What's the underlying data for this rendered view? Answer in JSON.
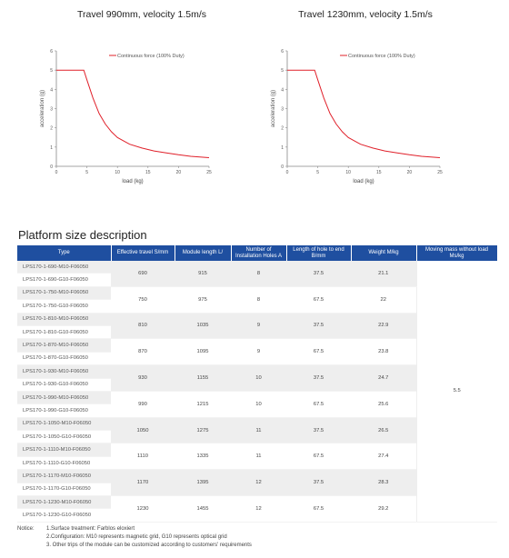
{
  "charts": [
    {
      "title": "Travel 990mm, velocity 1.5m/s",
      "ylabel": "acceleration (g)",
      "xlabel": "load  (kg)",
      "legend": "Continuous force (100% Duty)",
      "xticks": [
        "0",
        "5",
        "10",
        "15",
        "20",
        "25"
      ],
      "yticks": [
        "0",
        "1",
        "2",
        "3",
        "4",
        "5",
        "6"
      ]
    },
    {
      "title": "Travel 1230mm, velocity 1.5m/s",
      "ylabel": "acceleration (g)",
      "xlabel": "load  (kg)",
      "legend": "Continuous force (100% Duty)",
      "xticks": [
        "0",
        "5",
        "10",
        "15",
        "20",
        "25"
      ],
      "yticks": [
        "0",
        "1",
        "2",
        "3",
        "4",
        "5",
        "6"
      ]
    }
  ],
  "chart_data": [
    {
      "type": "line",
      "title": "Travel 990mm, velocity 1.5m/s",
      "xlabel": "load  (kg)",
      "ylabel": "acceleration (g)",
      "xlim": [
        0,
        25
      ],
      "ylim": [
        0,
        6
      ],
      "series": [
        {
          "name": "Continuous force (100% Duty)",
          "color": "#e0202a",
          "x": [
            0,
            4.5,
            5,
            6,
            7,
            8,
            9,
            10,
            12,
            14,
            16,
            18,
            20,
            22,
            25
          ],
          "y": [
            5,
            5,
            4.5,
            3.55,
            2.75,
            2.2,
            1.8,
            1.5,
            1.15,
            0.95,
            0.8,
            0.7,
            0.6,
            0.52,
            0.45
          ]
        }
      ]
    },
    {
      "type": "line",
      "title": "Travel 1230mm, velocity 1.5m/s",
      "xlabel": "load  (kg)",
      "ylabel": "acceleration (g)",
      "xlim": [
        0,
        25
      ],
      "ylim": [
        0,
        6
      ],
      "series": [
        {
          "name": "Continuous force (100% Duty)",
          "color": "#e0202a",
          "x": [
            0,
            4.5,
            5,
            6,
            7,
            8,
            9,
            10,
            12,
            14,
            16,
            18,
            20,
            22,
            25
          ],
          "y": [
            5,
            5,
            4.5,
            3.55,
            2.75,
            2.2,
            1.8,
            1.5,
            1.15,
            0.95,
            0.8,
            0.7,
            0.6,
            0.52,
            0.45
          ]
        }
      ]
    }
  ],
  "section_title": "Platform size description",
  "table": {
    "headers": [
      "Type",
      "Effective travel S/mm",
      "Module length L/",
      "Number of Installation Holes A",
      "Length of hole to end B/mm",
      "Weight M/kg",
      "Moving mass without load Ms/kg"
    ],
    "groups": [
      {
        "types": [
          "LPS170-1-690-M10-F06050",
          "LPS170-1-690-G10-F06050"
        ],
        "travel": "690",
        "length": "915",
        "holes": "8",
        "b": "37.5",
        "weight": "21.1"
      },
      {
        "types": [
          "LPS170-1-750-M10-F06050",
          "LPS170-1-750-G10-F06050"
        ],
        "travel": "750",
        "length": "975",
        "holes": "8",
        "b": "67.5",
        "weight": "22"
      },
      {
        "types": [
          "LPS170-1-810-M10-F06050",
          "LPS170-1-810-G10-F06050"
        ],
        "travel": "810",
        "length": "1035",
        "holes": "9",
        "b": "37.5",
        "weight": "22.9"
      },
      {
        "types": [
          "LPS170-1-870-M10-F06050",
          "LPS170-1-870-G10-F06050"
        ],
        "travel": "870",
        "length": "1095",
        "holes": "9",
        "b": "67.5",
        "weight": "23.8"
      },
      {
        "types": [
          "LPS170-1-930-M10-F06050",
          "LPS170-1-930-G10-F06050"
        ],
        "travel": "930",
        "length": "1155",
        "holes": "10",
        "b": "37.5",
        "weight": "24.7"
      },
      {
        "types": [
          "LPS170-1-990-M10-F06050",
          "LPS170-1-990-G10-F06050"
        ],
        "travel": "990",
        "length": "1215",
        "holes": "10",
        "b": "67.5",
        "weight": "25.6"
      },
      {
        "types": [
          "LPS170-1-1050-M10-F06050",
          "LPS170-1-1050-G10-F06050"
        ],
        "travel": "1050",
        "length": "1275",
        "holes": "11",
        "b": "37.5",
        "weight": "26.5"
      },
      {
        "types": [
          "LPS170-1-1110-M10-F06050",
          "LPS170-1-1110-G10-F06050"
        ],
        "travel": "1110",
        "length": "1335",
        "holes": "11",
        "b": "67.5",
        "weight": "27.4"
      },
      {
        "types": [
          "LPS170-1-1170-M10-F06050",
          "LPS170-1-1170-G10-F06050"
        ],
        "travel": "1170",
        "length": "1395",
        "holes": "12",
        "b": "37.5",
        "weight": "28.3"
      },
      {
        "types": [
          "LPS170-1-1230-M10-F06050",
          "LPS170-1-1230-G10-F06050"
        ],
        "travel": "1230",
        "length": "1455",
        "holes": "12",
        "b": "67.5",
        "weight": "29.2"
      }
    ],
    "moving_mass": "5.5"
  },
  "notice": {
    "label": "Notice:",
    "lines": [
      "1.Surface treatment: Farblos eloxiert",
      "2.Configuration: M10 represents magnetic grid, G10 represents optical grid",
      "3. Other trips of the module can be customized according to customers' requirements"
    ]
  }
}
